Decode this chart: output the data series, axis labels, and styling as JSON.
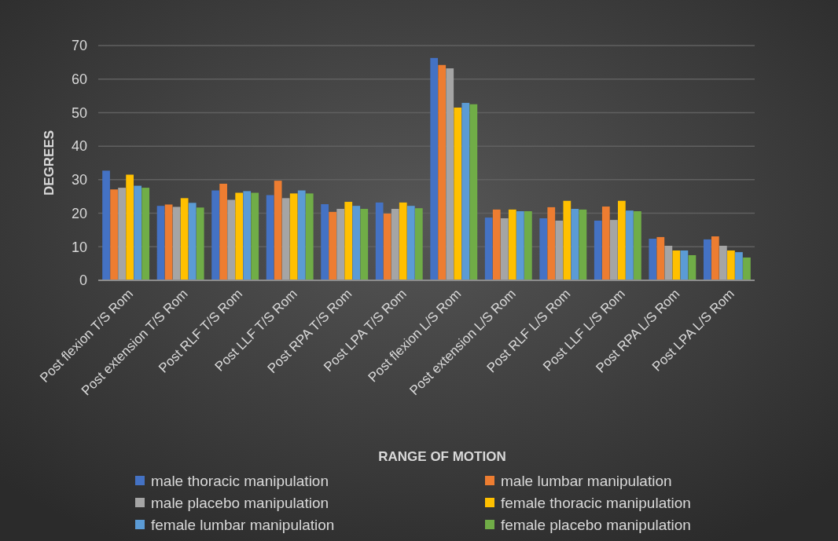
{
  "chart_data": {
    "type": "bar",
    "xlabel": "RANGE OF MOTION",
    "ylabel": "DEGREES",
    "categories": [
      "Post flexion T/S Rom",
      "Post extension T/S Rom",
      "Post RLF T/S Rom",
      "Post LLF T/S Rom",
      "Post RPA T/S Rom",
      "Post LPA T/S Rom",
      "Post flexion L/S Rom",
      "Post extension L/S Rom",
      "Post RLF L/S Rom",
      "Post LLF L/S Rom",
      "Post RPA L/S Rom",
      "Post LPA L/S Rom"
    ],
    "series": [
      {
        "name": "male thoracic manipulation",
        "color": "#4472c4",
        "values": [
          32.7,
          22.2,
          26.8,
          25.4,
          22.7,
          23.2,
          66.3,
          18.7,
          18.5,
          17.8,
          12.4,
          12.2
        ]
      },
      {
        "name": "male lumbar manipulation",
        "color": "#ed7d31",
        "values": [
          27.1,
          22.6,
          28.8,
          29.7,
          20.4,
          19.9,
          64.2,
          21.1,
          21.8,
          22.0,
          12.9,
          13.1
        ]
      },
      {
        "name": "male placebo manipulation",
        "color": "#a5a5a5",
        "values": [
          27.6,
          21.9,
          24.0,
          24.5,
          21.3,
          21.3,
          63.2,
          18.5,
          17.8,
          18.0,
          10.3,
          10.3
        ]
      },
      {
        "name": "female thoracic manipulation",
        "color": "#ffc000",
        "values": [
          31.5,
          24.5,
          26.1,
          25.9,
          23.4,
          23.2,
          51.5,
          21.1,
          23.7,
          23.7,
          8.9,
          8.9
        ]
      },
      {
        "name": "female lumbar manipulation",
        "color": "#5b9bd5",
        "values": [
          28.2,
          23.1,
          26.6,
          26.8,
          22.2,
          22.2,
          52.9,
          20.6,
          21.3,
          20.8,
          8.9,
          8.4
        ]
      },
      {
        "name": "female placebo manipulation",
        "color": "#70ad47",
        "values": [
          27.6,
          21.7,
          26.1,
          25.9,
          21.3,
          21.5,
          52.5,
          20.6,
          21.1,
          20.6,
          7.5,
          6.8
        ]
      }
    ],
    "ylim": [
      0,
      70
    ],
    "yticks": [
      0,
      10,
      20,
      30,
      40,
      50,
      60,
      70
    ],
    "grid": "y",
    "legend": "bottom"
  }
}
